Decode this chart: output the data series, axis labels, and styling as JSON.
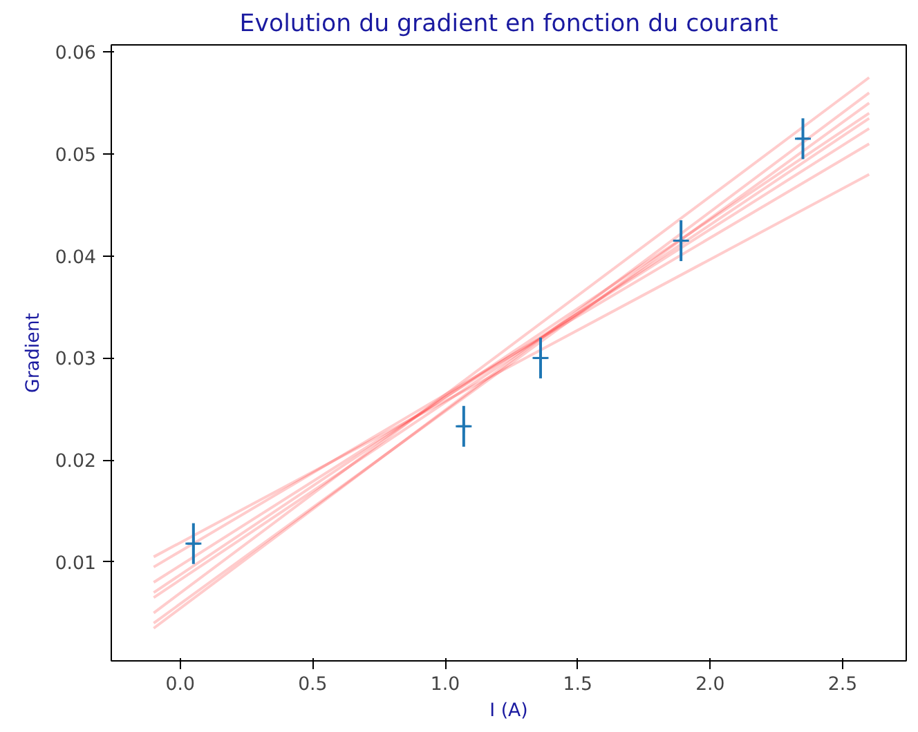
{
  "chart_data": {
    "type": "scatter",
    "title": "Evolution du gradient en fonction du courant",
    "xlabel": "I (A)",
    "ylabel": "Gradient",
    "xlim": [
      -0.26,
      2.74
    ],
    "ylim": [
      0.0003,
      0.0607
    ],
    "xticks": [
      {
        "value": 0,
        "label": "0.0"
      },
      0.5,
      {
        "value": 1,
        "label": "1.0"
      },
      1.5,
      {
        "value": 2,
        "label": "2.0"
      },
      2.5
    ],
    "yticks": [
      0.01,
      0.02,
      0.03,
      0.04,
      0.05,
      0.06
    ],
    "grid": false,
    "series": [
      {
        "type": "line",
        "color": "#ff0000",
        "x": [
          -0.1,
          2.6
        ],
        "values": [
          0.0065,
          0.0535
        ]
      },
      {
        "type": "line",
        "color": "#ff0000",
        "x": [
          -0.1,
          2.6
        ],
        "values": [
          0.0035,
          0.056
        ]
      },
      {
        "type": "line",
        "color": "#ff0000",
        "x": [
          -0.1,
          2.6
        ],
        "values": [
          0.0095,
          0.051
        ]
      },
      {
        "type": "line",
        "color": "#ff0000",
        "x": [
          -0.1,
          2.6
        ],
        "values": [
          0.005,
          0.0575
        ]
      },
      {
        "type": "line",
        "color": "#ff0000",
        "x": [
          -0.1,
          2.6
        ],
        "values": [
          0.008,
          0.0525
        ]
      },
      {
        "type": "line",
        "color": "#ff0000",
        "x": [
          -0.1,
          2.6
        ],
        "values": [
          0.0105,
          0.048
        ]
      },
      {
        "type": "line",
        "color": "#ff0000",
        "x": [
          -0.1,
          2.6
        ],
        "values": [
          0.004,
          0.055
        ]
      },
      {
        "type": "line",
        "color": "#ff0000",
        "x": [
          -0.1,
          2.6
        ],
        "values": [
          0.007,
          0.054
        ]
      },
      {
        "color": "#1f77b4",
        "marker": "cross",
        "x": [
          0.05,
          1.07,
          1.36,
          1.89,
          2.35
        ],
        "values": [
          0.0118,
          0.0233,
          0.03,
          0.0415,
          0.0515
        ],
        "errors": [
          0.002,
          0.002,
          0.002,
          0.002,
          0.002
        ],
        "xerrors": [
          0.03,
          0.03,
          0.03,
          0.03,
          0.03
        ]
      }
    ]
  }
}
